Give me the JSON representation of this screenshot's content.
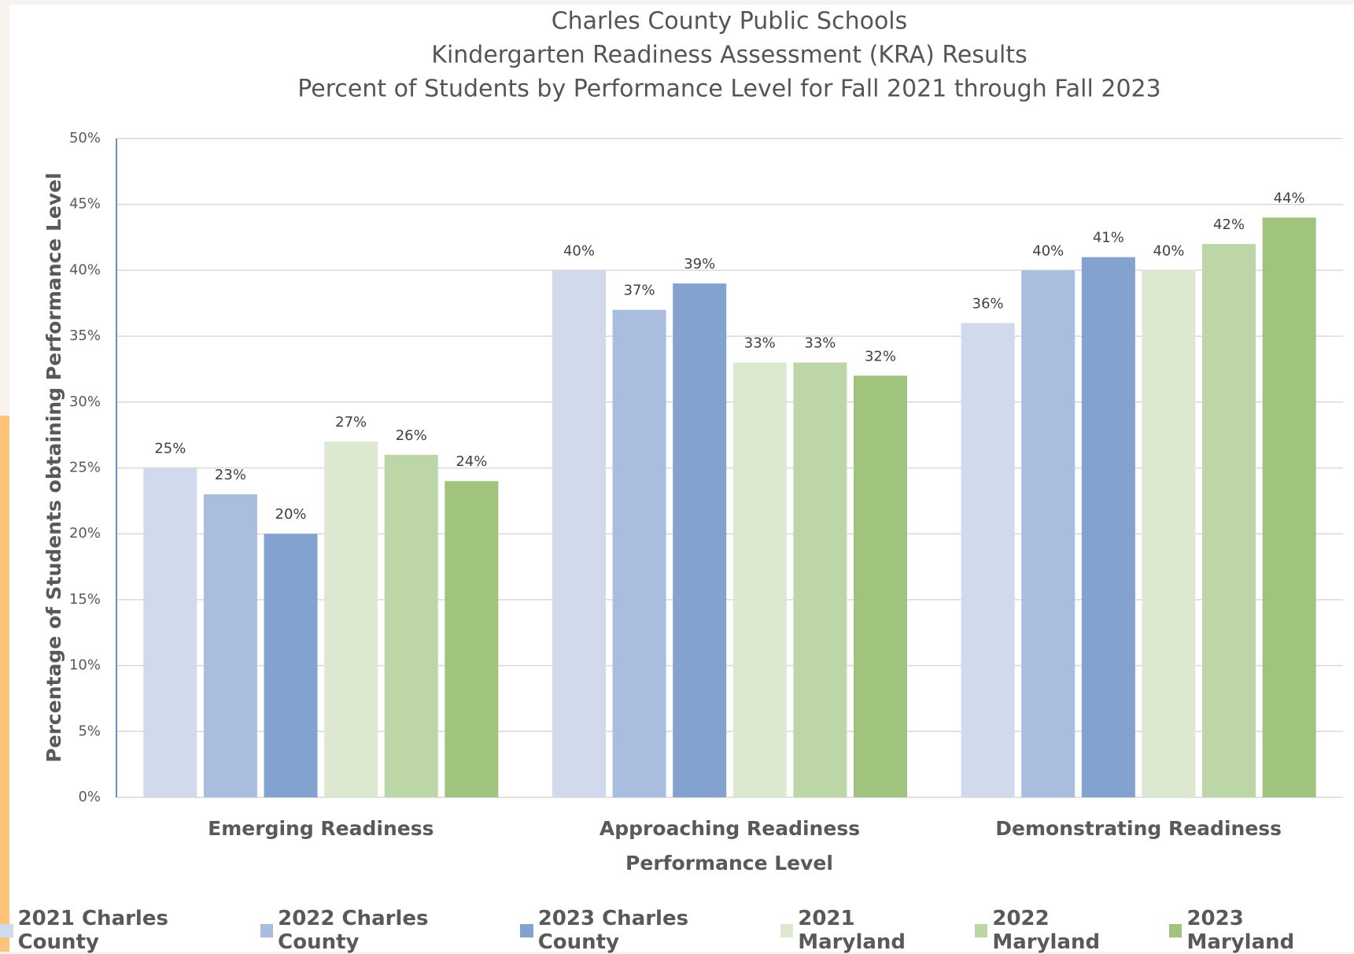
{
  "chart_data": {
    "type": "bar",
    "title": [
      "Charles County Public Schools",
      "Kindergarten Readiness Assessment (KRA) Results",
      "Percent of Students by Performance Level for Fall 2021 through Fall 2023"
    ],
    "x_label": "Performance Level",
    "y_label": "Percentage of Students obtaining Performance Level",
    "categories": [
      "Emerging Readiness",
      "Approaching Readiness",
      "Demonstrating Readiness"
    ],
    "series": [
      {
        "name": "2021 Charles County",
        "color": "#d0daec",
        "values": [
          25,
          40,
          36
        ],
        "value_labels": [
          "25%",
          "40%",
          "36%"
        ]
      },
      {
        "name": "2022 Charles County",
        "color": "#a9bedf",
        "values": [
          23,
          37,
          40
        ],
        "value_labels": [
          "23%",
          "37%",
          "40%"
        ]
      },
      {
        "name": "2023 Charles County",
        "color": "#84a2cf",
        "values": [
          20,
          39,
          41
        ],
        "value_labels": [
          "20%",
          "39%",
          "41%"
        ]
      },
      {
        "name": "2021 Maryland",
        "color": "#dde8d0",
        "values": [
          27,
          33,
          40
        ],
        "value_labels": [
          "27%",
          "33%",
          "40%"
        ]
      },
      {
        "name": "2022 Maryland",
        "color": "#bcd6a8",
        "values": [
          26,
          33,
          42
        ],
        "value_labels": [
          "26%",
          "33%",
          "42%"
        ]
      },
      {
        "name": "2023 Maryland",
        "color": "#a0c47e",
        "values": [
          24,
          32,
          44
        ],
        "value_labels": [
          "24%",
          "32%",
          "44%"
        ]
      }
    ],
    "ylim": [
      0,
      50
    ],
    "yticks": [
      {
        "value": 0,
        "label": "0%"
      },
      {
        "value": 5,
        "label": "5%"
      },
      {
        "value": 10,
        "label": "10%"
      },
      {
        "value": 15,
        "label": "15%"
      },
      {
        "value": 20,
        "label": "20%"
      },
      {
        "value": 25,
        "label": "25%"
      },
      {
        "value": 30,
        "label": "30%"
      },
      {
        "value": 35,
        "label": "35%"
      },
      {
        "value": 40,
        "label": "40%"
      },
      {
        "value": 45,
        "label": "45%"
      },
      {
        "value": 50,
        "label": "50%"
      }
    ],
    "grid": true,
    "legend": "bottom"
  }
}
